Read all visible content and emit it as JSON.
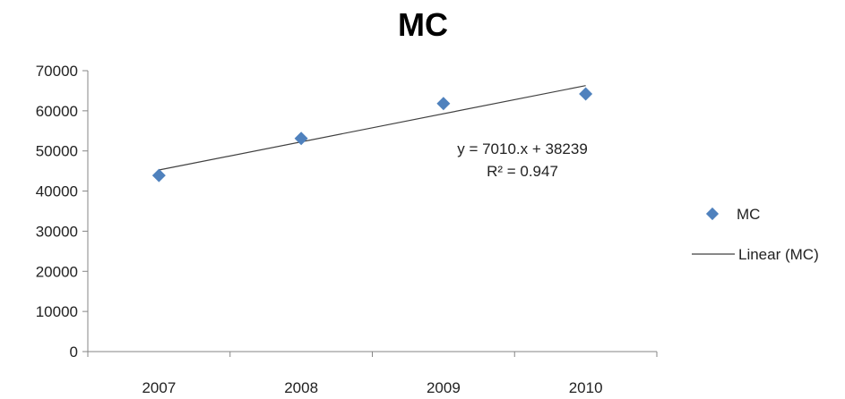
{
  "chart_data": {
    "type": "scatter",
    "title": "MC",
    "categories": [
      "2007",
      "2008",
      "2009",
      "2010"
    ],
    "x": [
      1,
      2,
      3,
      4
    ],
    "series": [
      {
        "name": "MC",
        "values": [
          43900,
          53100,
          61800,
          64200
        ],
        "color": "#4F81BD",
        "marker": "diamond"
      }
    ],
    "trendline": {
      "name": "Linear (MC)",
      "type": "linear",
      "slope": 7010,
      "intercept": 38239,
      "r_squared": 0.947,
      "equation_label": "y = 7010.x + 38239",
      "r2_label": "R² = 0.947",
      "color": "#404040"
    },
    "ylim": [
      0,
      70000
    ],
    "yticks": [
      "70000",
      "60000",
      "50000",
      "40000",
      "30000",
      "20000",
      "10000",
      "0"
    ],
    "ytick_values": [
      70000,
      60000,
      50000,
      40000,
      30000,
      20000,
      10000,
      0
    ],
    "grid": false,
    "legend_position": "right",
    "xlabel": "",
    "ylabel": ""
  }
}
